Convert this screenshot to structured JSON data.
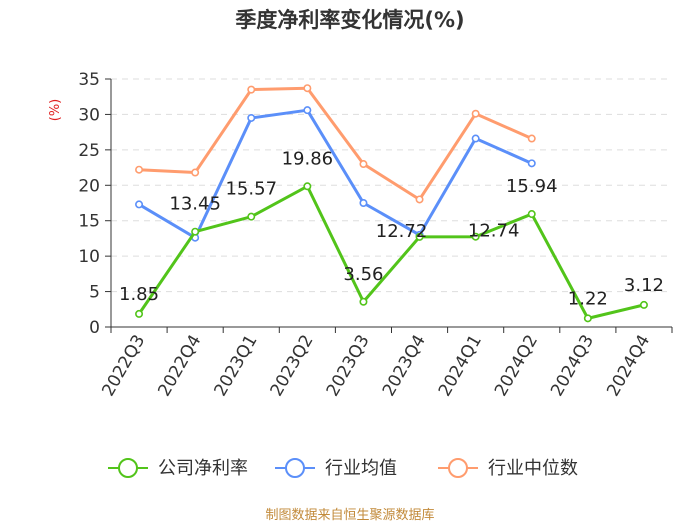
{
  "chart_data": {
    "type": "line",
    "title": "季度净利率变化情况(%)",
    "ylabel": "(%)",
    "xlabel": "",
    "ylim": [
      0,
      35
    ],
    "yticks": [
      0,
      5,
      10,
      15,
      20,
      25,
      30,
      35
    ],
    "grid": true,
    "legend_position": "bottom",
    "categories": [
      "2022Q3",
      "2022Q4",
      "2023Q1",
      "2023Q2",
      "2023Q3",
      "2023Q4",
      "2024Q1",
      "2024Q2",
      "2024Q3",
      "2024Q4"
    ],
    "series": [
      {
        "name": "公司净利率",
        "color": "#52c41a",
        "values": [
          1.85,
          13.45,
          15.57,
          19.86,
          3.56,
          12.72,
          12.74,
          15.94,
          1.22,
          3.12
        ],
        "labels": [
          "1.85",
          "13.45",
          "15.57",
          "19.86",
          "3.56",
          "12.72",
          "12.74",
          "15.94",
          "1.22",
          "3.12"
        ]
      },
      {
        "name": "行业均值",
        "color": "#5b8ff9",
        "values": [
          17.3,
          12.6,
          29.5,
          30.6,
          17.5,
          13.0,
          26.6,
          23.1,
          null,
          null
        ]
      },
      {
        "name": "行业中位数",
        "color": "#ff9c6e",
        "values": [
          22.2,
          21.8,
          33.5,
          33.7,
          23.0,
          18.0,
          30.1,
          26.6,
          null,
          null
        ]
      }
    ],
    "source": "制图数据来自恒生聚源数据库"
  }
}
